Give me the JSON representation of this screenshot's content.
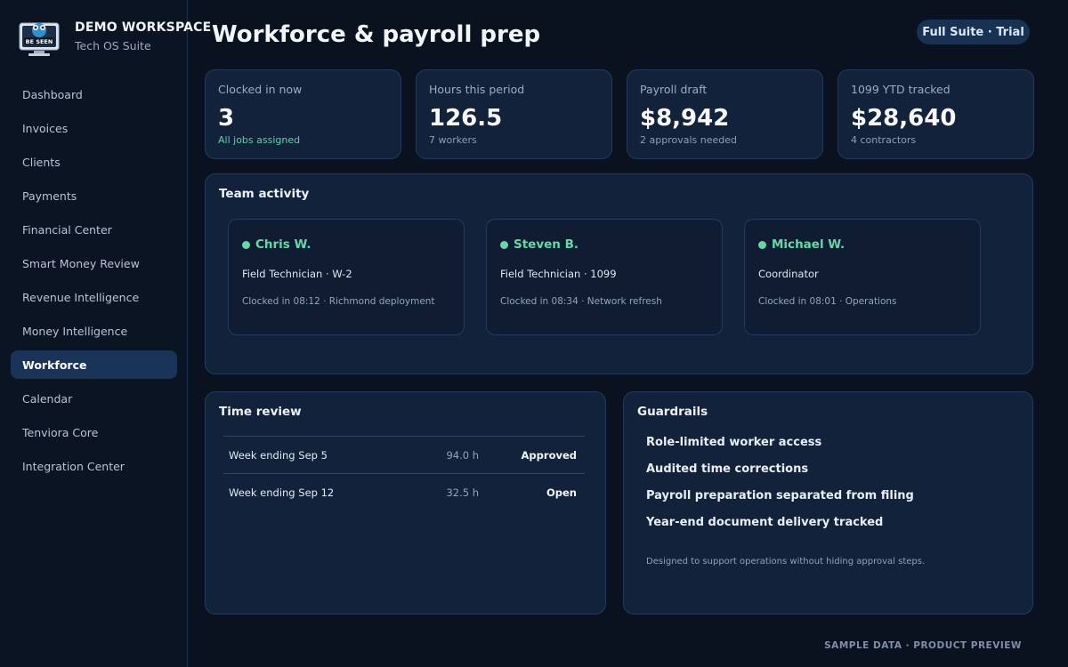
{
  "brand": {
    "logo_text": "BE SEEN",
    "name": "DEMO WORKSPACE",
    "subtitle": "Tech OS Suite"
  },
  "nav": {
    "items": [
      {
        "label": "Dashboard",
        "active": false
      },
      {
        "label": "Invoices",
        "active": false
      },
      {
        "label": "Clients",
        "active": false
      },
      {
        "label": "Payments",
        "active": false
      },
      {
        "label": "Financial Center",
        "active": false
      },
      {
        "label": "Smart Money Review",
        "active": false
      },
      {
        "label": "Revenue Intelligence",
        "active": false
      },
      {
        "label": "Money Intelligence",
        "active": false
      },
      {
        "label": "Workforce",
        "active": true
      },
      {
        "label": "Calendar",
        "active": false
      },
      {
        "label": "Tenviora Core",
        "active": false
      },
      {
        "label": "Integration Center",
        "active": false
      }
    ]
  },
  "header": {
    "title": "Workforce & payroll prep",
    "plan_badge": "Full Suite · Trial"
  },
  "kpis": [
    {
      "label": "Clocked in now",
      "value": "3",
      "sub": "All jobs assigned",
      "sub_color": "#5ad2a4"
    },
    {
      "label": "Hours this period",
      "value": "126.5",
      "sub": "7 workers"
    },
    {
      "label": "Payroll draft",
      "value": "$8,942",
      "sub": "2 approvals needed"
    },
    {
      "label": "1099 YTD tracked",
      "value": "$28,640",
      "sub": "4 contractors"
    }
  ],
  "team_activity": {
    "title": "Team activity",
    "members": [
      {
        "name": "Chris W.",
        "role": "Field Technician · W-2",
        "status": "Clocked in 08:12 · Richmond deployment"
      },
      {
        "name": "Steven B.",
        "role": "Field Technician · 1099",
        "status": "Clocked in 08:34 · Network refresh"
      },
      {
        "name": "Michael W.",
        "role": "Coordinator",
        "status": "Clocked in 08:01 · Operations"
      }
    ]
  },
  "time_review": {
    "title": "Time review",
    "rows": [
      {
        "week": "Week ending Sep 5",
        "hours": "94.0 h",
        "status": "Approved"
      },
      {
        "week": "Week ending Sep 12",
        "hours": "32.5 h",
        "status": "Open"
      }
    ]
  },
  "guardrails": {
    "title": "Guardrails",
    "items": [
      "Role-limited worker access",
      "Audited time corrections",
      "Payroll preparation separated from filing",
      "Year-end document delivery tracked"
    ],
    "note": "Designed to support operations without hiding approval steps."
  },
  "footer": "SAMPLE DATA · PRODUCT PREVIEW",
  "colors": {
    "accent_green": "#63d9a8",
    "active_nav": "#1a3358",
    "card_bg": "#13223b"
  }
}
